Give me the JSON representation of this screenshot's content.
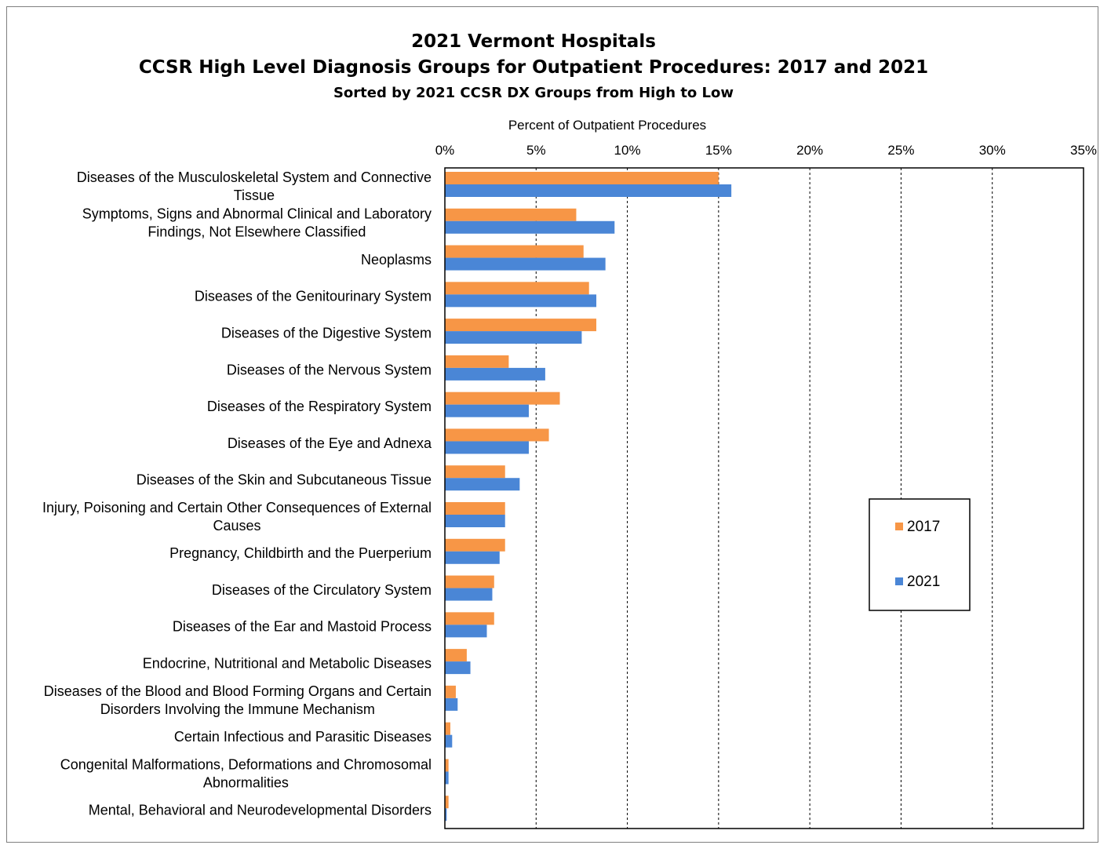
{
  "title": "2021 Vermont Hospitals",
  "subtitle": "CCSR High Level Diagnosis Groups for Outpatient Procedures: 2017 and 2021",
  "subtitle2": "Sorted by 2021 CCSR DX Groups from High to Low",
  "chart_data": {
    "type": "bar",
    "orientation": "horizontal",
    "xlabel": "Percent of Outpatient Procedures",
    "xlim": [
      0,
      35
    ],
    "xticks": [
      "0%",
      "5%",
      "10%",
      "15%",
      "20%",
      "25%",
      "30%",
      "35%"
    ],
    "grid": "vertical dashed",
    "legend_position": "right",
    "categories": [
      [
        "Diseases of the Musculoskeletal System and Connective",
        "Tissue"
      ],
      [
        "Symptoms, Signs and Abnormal Clinical and Laboratory",
        "Findings, Not Elsewhere Classified"
      ],
      [
        "Neoplasms"
      ],
      [
        "Diseases of the Genitourinary System"
      ],
      [
        "Diseases of the Digestive System"
      ],
      [
        "Diseases of the Nervous System"
      ],
      [
        "Diseases of the Respiratory System"
      ],
      [
        "Diseases of the Eye and Adnexa"
      ],
      [
        "Diseases of the Skin and Subcutaneous Tissue"
      ],
      [
        "Injury, Poisoning and Certain Other Consequences of External",
        "Causes"
      ],
      [
        "Pregnancy, Childbirth and the Puerperium"
      ],
      [
        "Diseases of the Circulatory System"
      ],
      [
        "Diseases of the Ear and Mastoid Process"
      ],
      [
        "Endocrine, Nutritional and Metabolic Diseases"
      ],
      [
        "Diseases of the Blood and Blood Forming Organs and Certain",
        "Disorders Involving the Immune Mechanism"
      ],
      [
        "Certain Infectious and Parasitic Diseases"
      ],
      [
        "Congenital Malformations, Deformations and Chromosomal",
        "Abnormalities"
      ],
      [
        "Mental, Behavioral and Neurodevelopmental Disorders"
      ]
    ],
    "series": [
      {
        "name": "2017",
        "color": "#f79646",
        "values": [
          15.0,
          7.2,
          7.6,
          7.9,
          8.3,
          3.5,
          6.3,
          5.7,
          3.3,
          3.3,
          3.3,
          2.7,
          2.7,
          1.2,
          0.6,
          0.3,
          0.2,
          0.2
        ]
      },
      {
        "name": "2021",
        "color": "#4a86d6",
        "values": [
          15.7,
          9.3,
          8.8,
          8.3,
          7.5,
          5.5,
          4.6,
          4.6,
          4.1,
          3.3,
          3.0,
          2.6,
          2.3,
          1.4,
          0.7,
          0.4,
          0.2,
          0.1
        ]
      }
    ]
  }
}
